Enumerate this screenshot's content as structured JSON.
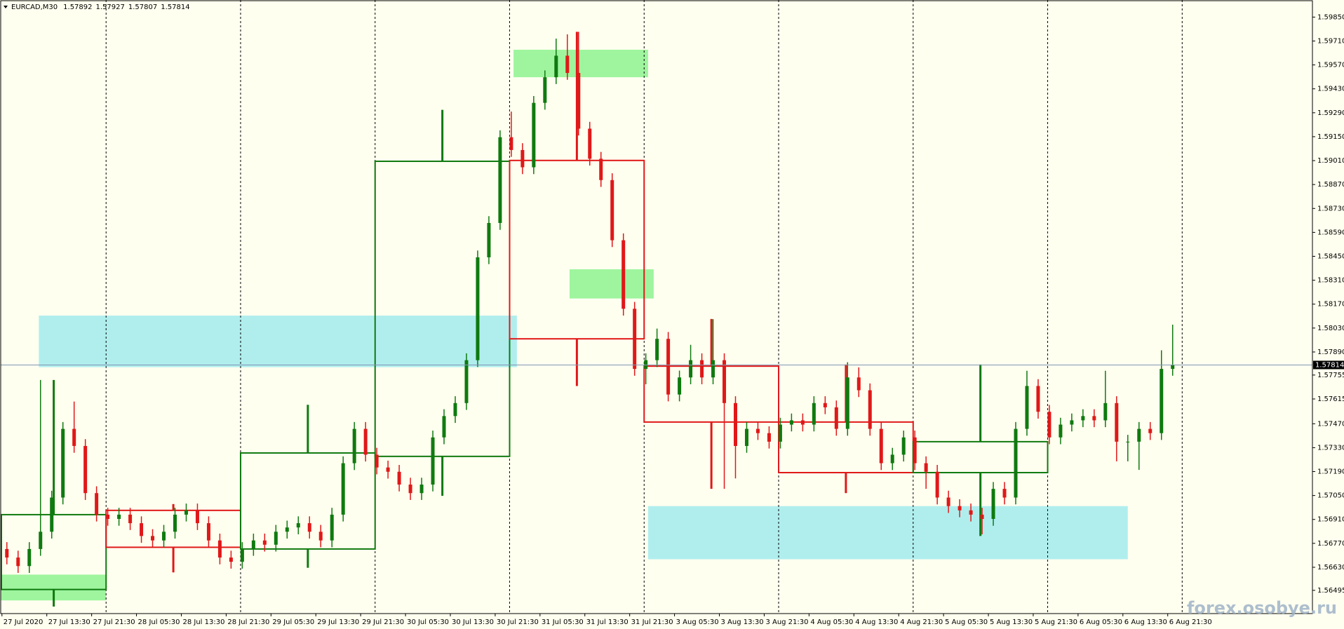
{
  "chart_data": {
    "type": "candlestick",
    "symbol": "EURCAD,M30",
    "header_values": [
      1.57892,
      1.57927,
      1.57807,
      1.57814
    ],
    "watermark": "forex.osobye.ru",
    "up_color": "#0f7a0f",
    "down_color": "#e01818",
    "background": "#fffff0",
    "ylim": [
      1.56359,
      1.5995
    ],
    "yticks": [
      {
        "value": 1.5985,
        "label": "1.59850"
      },
      {
        "value": 1.5971,
        "label": "1.59710"
      },
      {
        "value": 1.5957,
        "label": "1.59570"
      },
      {
        "value": 1.5943,
        "label": "1.59430"
      },
      {
        "value": 1.5929,
        "label": "1.59290"
      },
      {
        "value": 1.5915,
        "label": "1.59150"
      },
      {
        "value": 1.5901,
        "label": "1.59010"
      },
      {
        "value": 1.5887,
        "label": "1.58870"
      },
      {
        "value": 1.5873,
        "label": "1.58730"
      },
      {
        "value": 1.5859,
        "label": "1.58590"
      },
      {
        "value": 1.5845,
        "label": "1.58450"
      },
      {
        "value": 1.5831,
        "label": "1.58310"
      },
      {
        "value": 1.5817,
        "label": "1.58170"
      },
      {
        "value": 1.5803,
        "label": "1.58030"
      },
      {
        "value": 1.5789,
        "label": "1.57890"
      },
      1.57755,
      1.57615,
      {
        "value": 1.5747,
        "label": "1.57470"
      },
      {
        "value": 1.5733,
        "label": "1.57330"
      },
      {
        "value": 1.5719,
        "label": "1.57190"
      },
      {
        "value": 1.5705,
        "label": "1.57050"
      },
      {
        "value": 1.5691,
        "label": "1.56910"
      },
      {
        "value": 1.5677,
        "label": "1.56770"
      },
      {
        "value": 1.5663,
        "label": "1.56630"
      },
      1.56495
    ],
    "xtick_labels": [
      "27 Jul 2020",
      "27 Jul 13:30",
      "27 Jul 21:30",
      "28 Jul 05:30",
      "28 Jul 13:30",
      "28 Jul 21:30",
      "29 Jul 05:30",
      "29 Jul 13:30",
      "29 Jul 21:30",
      "30 Jul 05:30",
      "30 Jul 13:30",
      "30 Jul 21:30",
      "31 Jul 05:30",
      "31 Jul 13:30",
      "31 Jul 21:30",
      "3 Aug 05:30",
      "3 Aug 13:30",
      "3 Aug 21:30",
      "4 Aug 05:30",
      "4 Aug 13:30",
      "4 Aug 21:30",
      "5 Aug 05:30",
      "5 Aug 13:30",
      "5 Aug 21:30",
      "6 Aug 05:30",
      "6 Aug 13:30",
      "6 Aug 21:30"
    ],
    "last": 1.57814,
    "open": [
      1.56737,
      1.56687,
      1.56637,
      1.56737,
      1.56838,
      1.57038,
      1.5744,
      1.5734,
      1.57064,
      1.56938,
      1.56913,
      1.56938,
      1.56888,
      1.56813,
      1.56787,
      1.56838,
      1.56938,
      1.56963,
      1.56888,
      1.56787,
      1.56687,
      1.56662,
      1.56737,
      1.56787,
      1.56762,
      1.56838,
      1.56863,
      1.56888,
      1.56838,
      1.56787,
      1.56938,
      1.57239,
      1.5744,
      1.57289,
      1.57214,
      1.57189,
      1.57114,
      1.57064,
      1.57114,
      1.5739,
      1.57515,
      1.57591,
      1.57842,
      1.58444,
      1.58645,
      1.59147,
      1.59072,
      1.58971,
      1.59348,
      1.59498,
      1.59624,
      1.59523,
      1.59197,
      1.59021,
      1.58896,
      1.58544,
      1.58143,
      1.57791,
      1.57842,
      1.57967,
      1.57641,
      1.57741,
      1.57842,
      1.57741,
      1.57842,
      1.57591,
      1.5734,
      1.5744,
      1.57415,
      1.57365,
      1.57465,
      1.5749,
      1.57465,
      1.57591,
      1.57566,
      1.5744,
      1.57741,
      1.57666,
      1.5744,
      1.57239,
      1.57289,
      1.5739,
      1.57239,
      1.57189,
      1.57038,
      1.56988,
      1.56963,
      1.56938,
      1.56913,
      1.57089,
      1.57038,
      1.5744,
      1.57691,
      1.5754,
      1.5739,
      1.57465,
      1.5749,
      1.57515,
      1.5749,
      1.57591,
      1.57365,
      1.57365,
      1.5744,
      1.57415,
      1.57791
    ],
    "high": [
      1.56777,
      1.56727,
      1.56777,
      1.57726,
      1.57078,
      1.5748,
      1.576,
      1.5738,
      1.57104,
      1.56978,
      1.56978,
      1.56978,
      1.56928,
      1.56853,
      1.56878,
      1.56978,
      1.57003,
      1.57003,
      1.56928,
      1.56827,
      1.56727,
      1.56777,
      1.56827,
      1.56827,
      1.56878,
      1.56903,
      1.56928,
      1.56928,
      1.56878,
      1.56978,
      1.57279,
      1.5748,
      1.5748,
      1.57329,
      1.57254,
      1.57229,
      1.57154,
      1.57154,
      1.5743,
      1.57555,
      1.57631,
      1.57882,
      1.58484,
      1.58685,
      1.59187,
      1.59297,
      1.59112,
      1.59388,
      1.59538,
      1.59724,
      1.59749,
      1.59764,
      1.59237,
      1.59061,
      1.58936,
      1.58584,
      1.58183,
      1.57882,
      1.58027,
      1.58007,
      1.57781,
      1.57932,
      1.57882,
      1.58082,
      1.57882,
      1.57631,
      1.5748,
      1.5748,
      1.57455,
      1.57505,
      1.5753,
      1.5753,
      1.57631,
      1.57631,
      1.57606,
      1.5783,
      1.578,
      1.57706,
      1.5748,
      1.57329,
      1.5743,
      1.5743,
      1.57279,
      1.57229,
      1.57078,
      1.57028,
      1.57003,
      1.56978,
      1.57129,
      1.57129,
      1.5748,
      1.5778,
      1.57731,
      1.5758,
      1.57505,
      1.5753,
      1.57555,
      1.57555,
      1.5778,
      1.57631,
      1.57405,
      1.5748,
      1.5748,
      1.579,
      1.5805
    ],
    "low": [
      1.56647,
      1.56597,
      1.56597,
      1.56697,
      1.56798,
      1.56998,
      1.573,
      1.57024,
      1.56898,
      1.56873,
      1.56873,
      1.56848,
      1.56773,
      1.56747,
      1.56747,
      1.56798,
      1.56898,
      1.56848,
      1.56747,
      1.56647,
      1.56622,
      1.56622,
      1.56697,
      1.56722,
      1.56722,
      1.56798,
      1.56823,
      1.56798,
      1.56747,
      1.56747,
      1.56898,
      1.57199,
      1.57249,
      1.57174,
      1.57149,
      1.57074,
      1.57024,
      1.57024,
      1.57074,
      1.5735,
      1.57475,
      1.57551,
      1.57802,
      1.58404,
      1.58605,
      1.59032,
      1.58931,
      1.58931,
      1.59308,
      1.59458,
      1.59483,
      1.59157,
      1.58981,
      1.58856,
      1.58504,
      1.58103,
      1.57751,
      1.57701,
      1.57802,
      1.57601,
      1.57601,
      1.57701,
      1.57701,
      1.57701,
      1.57089,
      1.5715,
      1.573,
      1.57375,
      1.57325,
      1.57325,
      1.57425,
      1.57425,
      1.57425,
      1.57526,
      1.574,
      1.574,
      1.57626,
      1.574,
      1.57199,
      1.57199,
      1.57249,
      1.57199,
      1.57089,
      1.56998,
      1.56948,
      1.56923,
      1.56898,
      1.56823,
      1.56873,
      1.56998,
      1.56998,
      1.574,
      1.575,
      1.5735,
      1.5735,
      1.57425,
      1.5745,
      1.5745,
      1.5745,
      1.5725,
      1.5725,
      1.572,
      1.57375,
      1.57375,
      1.57751
    ],
    "close": [
      1.56687,
      1.56637,
      1.56737,
      1.56838,
      1.57038,
      1.5744,
      1.5734,
      1.57064,
      1.56938,
      1.56913,
      1.56938,
      1.56888,
      1.56813,
      1.56787,
      1.56838,
      1.56938,
      1.56963,
      1.56888,
      1.56787,
      1.56687,
      1.56662,
      1.56737,
      1.56787,
      1.56762,
      1.56838,
      1.56863,
      1.56888,
      1.56838,
      1.56787,
      1.56938,
      1.57239,
      1.5744,
      1.57289,
      1.57214,
      1.57189,
      1.57114,
      1.57064,
      1.57114,
      1.5739,
      1.57515,
      1.57591,
      1.57842,
      1.58444,
      1.58645,
      1.59147,
      1.59072,
      1.58971,
      1.59348,
      1.59498,
      1.59624,
      1.59523,
      1.59197,
      1.59021,
      1.58896,
      1.58544,
      1.58143,
      1.57791,
      1.57842,
      1.57967,
      1.57641,
      1.57741,
      1.57842,
      1.57741,
      1.57842,
      1.57591,
      1.5734,
      1.5744,
      1.57415,
      1.57365,
      1.57465,
      1.5749,
      1.57465,
      1.57591,
      1.57566,
      1.5744,
      1.57741,
      1.57666,
      1.5744,
      1.57239,
      1.57289,
      1.5739,
      1.57239,
      1.57189,
      1.57038,
      1.56988,
      1.56963,
      1.56938,
      1.56913,
      1.57089,
      1.57038,
      1.5744,
      1.57691,
      1.5754,
      1.5739,
      1.57465,
      1.5749,
      1.57515,
      1.5749,
      1.57591,
      1.57365,
      1.57365,
      1.5744,
      1.57415,
      1.57791,
      1.57814
    ],
    "daily_candles": [
      {
        "open": 1.565,
        "high": 1.57726,
        "low": 1.564,
        "close": 1.56938
      },
      {
        "open": 1.56963,
        "high": 1.57,
        "low": 1.566,
        "close": 1.56747
      },
      {
        "open": 1.56737,
        "high": 1.57581,
        "low": 1.56627,
        "close": 1.57299
      },
      {
        "open": 1.57279,
        "high": 1.59307,
        "low": 1.57048,
        "close": 1.59006
      },
      {
        "open": 1.59011,
        "high": 1.59764,
        "low": 1.57691,
        "close": 1.57967
      },
      {
        "open": 1.57807,
        "high": 1.58083,
        "low": 1.57089,
        "close": 1.5748
      },
      {
        "open": 1.5748,
        "high": 1.57817,
        "low": 1.57064,
        "close": 1.57184
      },
      {
        "open": 1.57184,
        "high": 1.57817,
        "low": 1.56813,
        "close": 1.57365
      }
    ],
    "zones": [
      {
        "from": 2.85,
        "to": 45.5,
        "top": 1.58103,
        "bottom": 1.57801,
        "color": "#b0eeee"
      },
      {
        "from": 57.2,
        "to": 100,
        "top": 1.56988,
        "bottom": 1.56677,
        "color": "#b0eeee"
      },
      {
        "from": -0.6,
        "to": 8.85,
        "top": 1.56587,
        "bottom": 1.56436,
        "color": "#9ef59e"
      },
      {
        "from": 45.2,
        "to": 57.2,
        "top": 1.59659,
        "bottom": 1.59498,
        "color": "#9ef59e"
      },
      {
        "from": 50.2,
        "to": 57.7,
        "top": 1.58374,
        "bottom": 1.58203,
        "color": "#9ef59e"
      }
    ]
  }
}
